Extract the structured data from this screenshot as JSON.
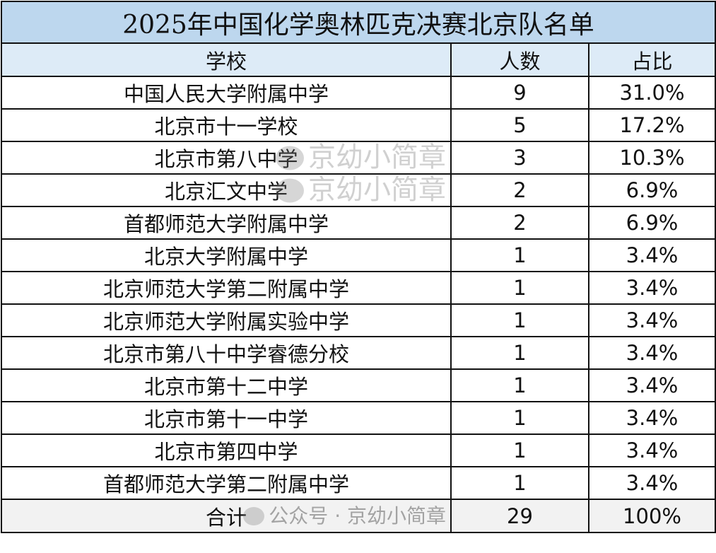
{
  "title": "2025年中国化学奥林匹克决赛北京队名单",
  "headers": [
    "学校",
    "人数",
    "占比"
  ],
  "rows": [
    [
      "中国人民大学附属中学",
      "9",
      "31.0%"
    ],
    [
      "北京市十一学校",
      "5",
      "17.2%"
    ],
    [
      "北京市第八中学",
      "3",
      "10.3%"
    ],
    [
      "北京汇文中学",
      "2",
      "6.9%"
    ],
    [
      "首都师范大学附属中学",
      "2",
      "6.9%"
    ],
    [
      "北京大学附属中学",
      "1",
      "3.4%"
    ],
    [
      "北京师范大学第二附属中学",
      "1",
      "3.4%"
    ],
    [
      "北京师范大学附属实验中学",
      "1",
      "3.4%"
    ],
    [
      "北京市第八十中学睿德分校",
      "1",
      "3.4%"
    ],
    [
      "北京市第十二中学",
      "1",
      "3.4%"
    ],
    [
      "北京市第十一中学",
      "1",
      "3.4%"
    ],
    [
      "北京市第四中学",
      "1",
      "3.4%"
    ],
    [
      "首都师范大学第二附属中学",
      "1",
      "3.4%"
    ]
  ],
  "total": [
    "合计",
    "29",
    "100%"
  ],
  "watermarks": [
    "京幼小简章",
    "京幼小简章",
    "公众号 · 京幼小简章"
  ],
  "colors": {
    "title_bg": "#bdd7ee",
    "header_bg": "#ddebf7",
    "total_bg": "#f2f2f2"
  }
}
